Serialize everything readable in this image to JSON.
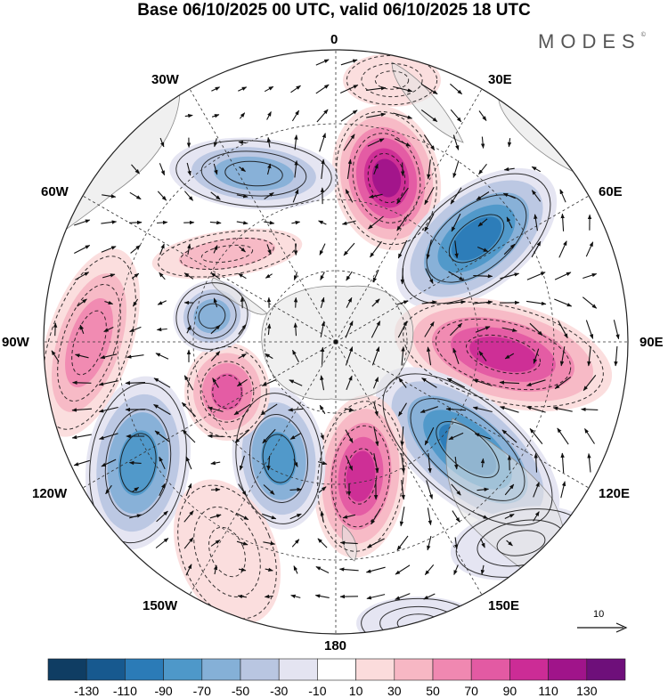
{
  "header": {
    "title": "Base 06/10/2025 00 UTC, valid 06/10/2025 18 UTC",
    "brand": "MODES",
    "brand_mark": "©"
  },
  "map": {
    "projection": "south-polar-stereographic",
    "longitude_labels": {
      "lon_0": "0",
      "lon_30e": "30E",
      "lon_60e": "60E",
      "lon_90e": "90E",
      "lon_120e": "120E",
      "lon_150e": "150E",
      "lon_180": "180",
      "lon_150w": "150W",
      "lon_120w": "120W",
      "lon_90w": "90W",
      "lon_60w": "60W",
      "lon_30w": "30W"
    },
    "colors": {
      "land": "#e3e3e3",
      "coastline": "#8a8a8a",
      "grid": "#333333",
      "vector": "#111111"
    },
    "vector_reference": {
      "label": "10"
    }
  },
  "colorbar": {
    "colors": [
      "#0f3d63",
      "#17598f",
      "#2b7bb7",
      "#4e98c9",
      "#85b0d7",
      "#b9c6e1",
      "#e4e4f1",
      "#ffffff",
      "#fbdcdc",
      "#f7b7c4",
      "#f088b1",
      "#e35aa3",
      "#cc2c96",
      "#a0148a",
      "#6e0f7a"
    ],
    "ticks": [
      "-130",
      "-110",
      "-90",
      "-70",
      "-50",
      "-30",
      "-10",
      "10",
      "30",
      "50",
      "70",
      "90",
      "110",
      "130"
    ]
  }
}
